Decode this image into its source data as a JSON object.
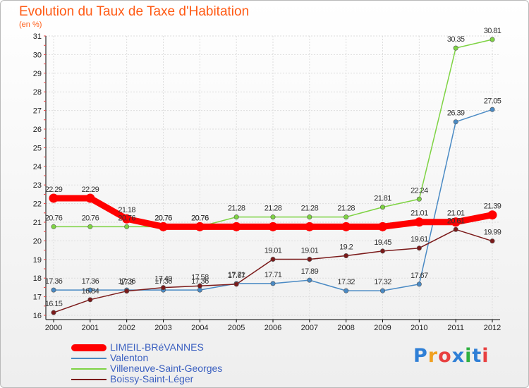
{
  "title": "Evolution du Taux de Taxe d'Habitation",
  "unit": "(en %)",
  "logo": "Proxiti",
  "chart_data": {
    "type": "line",
    "x": [
      2000,
      2001,
      2002,
      2003,
      2004,
      2005,
      2006,
      2007,
      2008,
      2009,
      2010,
      2011,
      2012
    ],
    "ylim": [
      16,
      31
    ],
    "yticks": [
      16,
      17,
      18,
      19,
      20,
      21,
      22,
      23,
      24,
      25,
      26,
      27,
      28,
      29,
      30,
      31
    ],
    "grid": true,
    "legend": "bottom-left",
    "series": [
      {
        "name": "LIMEIL-BRéVANNES",
        "color": "#ff0000",
        "emphasis": true,
        "values": [
          22.29,
          22.29,
          21.18,
          20.76,
          20.76,
          20.76,
          20.76,
          20.76,
          20.76,
          20.76,
          21.01,
          21.01,
          21.39
        ],
        "labels": [
          "22.29",
          "22.29",
          "21.18",
          "20.76",
          "20.76",
          "",
          "",
          "",
          "",
          "",
          "21.01",
          "21.01",
          "21.39"
        ]
      },
      {
        "name": "Valenton",
        "color": "#4a8ac4",
        "values": [
          17.36,
          17.36,
          17.36,
          17.36,
          17.36,
          17.71,
          17.71,
          17.89,
          17.32,
          17.32,
          17.67,
          26.39,
          27.05
        ],
        "labels": [
          "17.36",
          "17.36",
          "17.36",
          "17.36",
          "17.36",
          "17.71",
          "17.71",
          "17.89",
          "17.32",
          "17.32",
          "17.67",
          "26.39",
          "27.05"
        ]
      },
      {
        "name": "Villeneuve-Saint-Georges",
        "color": "#7ed343",
        "values": [
          20.76,
          20.76,
          20.76,
          20.76,
          20.76,
          21.28,
          21.28,
          21.28,
          21.28,
          21.81,
          22.24,
          30.35,
          30.81
        ],
        "labels": [
          "20.76",
          "20.76",
          "20.76",
          "20.76",
          "20.76",
          "21.28",
          "21.28",
          "21.28",
          "21.28",
          "21.81",
          "22.24",
          "30.35",
          "30.81"
        ]
      },
      {
        "name": "Boissy-Saint-Léger",
        "color": "#7b1a1a",
        "values": [
          16.15,
          16.84,
          17.3,
          17.49,
          17.58,
          17.67,
          19.01,
          19.01,
          19.2,
          19.45,
          19.61,
          20.61,
          19.99
        ],
        "labels": [
          "16.15",
          "16.84",
          "17.3",
          "17.49",
          "17.58",
          "17.67",
          "19.01",
          "19.01",
          "19.2",
          "19.45",
          "19.61",
          "20.61",
          "19.99"
        ]
      }
    ]
  }
}
